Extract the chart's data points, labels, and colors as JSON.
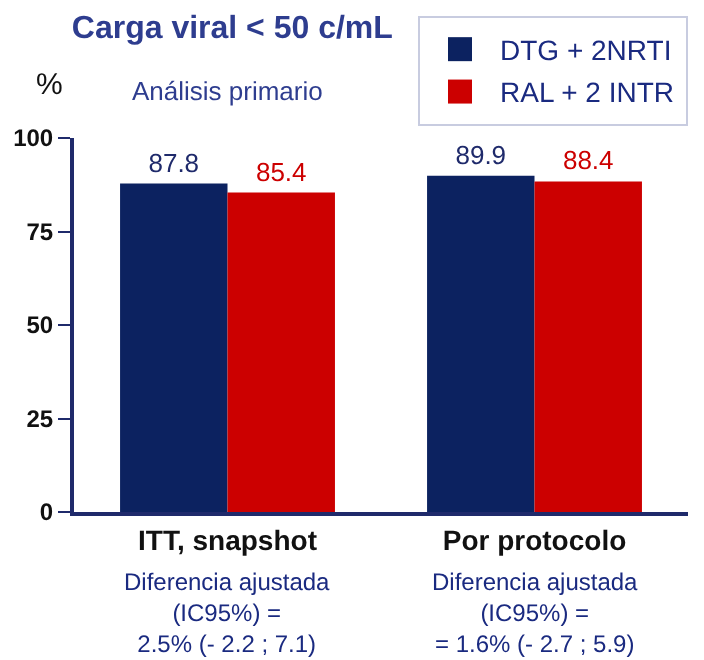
{
  "chart_data": {
    "type": "bar",
    "title": "Carga viral < 50 c/mL",
    "subtitle": "Análisis primario",
    "ylabel": "%",
    "categories": [
      "ITT, snapshot",
      "Por protocolo"
    ],
    "series": [
      {
        "name": "DTG + 2NRTI",
        "color": "#0c2260",
        "values": [
          87.8,
          89.9
        ]
      },
      {
        "name": "RAL + 2 INTR",
        "color": "#cc0000",
        "values": [
          85.4,
          88.4
        ]
      }
    ],
    "ylim": [
      0,
      100
    ],
    "yticks": [
      0,
      25,
      50,
      75,
      100
    ],
    "legend": "top right",
    "data_labels": true,
    "annotations": [
      "Diferencia ajustada\n(IC95%) =\n2.5% (- 2.2 ; 7.1)",
      "Diferencia ajustada\n(IC95%) =\n= 1.6% (- 2.7 ; 5.9)"
    ]
  }
}
